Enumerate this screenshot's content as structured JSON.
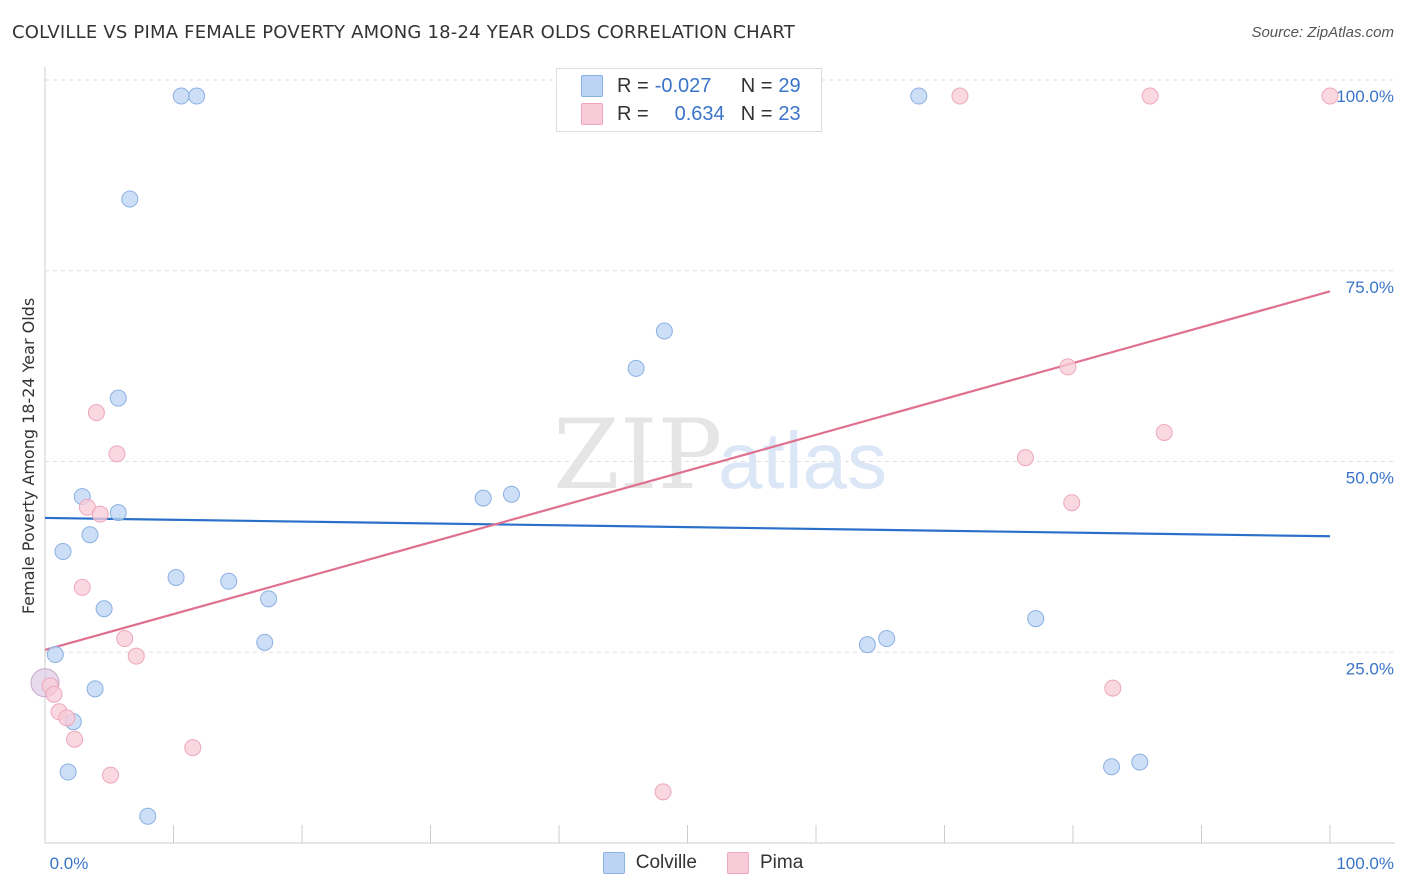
{
  "header": {
    "title": "COLVILLE VS PIMA FEMALE POVERTY AMONG 18-24 YEAR OLDS CORRELATION CHART",
    "source": "Source: ZipAtlas.com"
  },
  "legend": {
    "rows": [
      {
        "r_label": "R =",
        "r_value": "-0.027",
        "n_label": "N =",
        "n_value": "29"
      },
      {
        "r_label": "R =",
        "r_value": "0.634",
        "n_label": "N =",
        "n_value": "23"
      }
    ]
  },
  "watermark": {
    "zip": "ZIP",
    "atlas": "atlas"
  },
  "colors": {
    "colville_fill": "#bcd4f3",
    "colville_stroke": "#8ab0e4",
    "colville_line": "#2a6fc9",
    "pima_fill": "#f8cbd8",
    "pima_stroke": "#eea7bc",
    "pima_line": "#e0708f",
    "tick_label": "#3a74c9"
  },
  "chart_data": {
    "type": "scatter",
    "title": "COLVILLE VS PIMA FEMALE POVERTY AMONG 18-24 YEAR OLDS CORRELATION CHART",
    "xlabel": "",
    "ylabel": "Female Poverty Among 18-24 Year Olds",
    "xlim": [
      0,
      100
    ],
    "ylim": [
      0,
      100
    ],
    "x_tick_labels": [
      "0.0%",
      "100.0%"
    ],
    "y_ticks": [
      25,
      50,
      75,
      100
    ],
    "y_tick_labels": [
      "25.0%",
      "50.0%",
      "75.0%",
      "100.0%"
    ],
    "grid": true,
    "legend_position": "top-center",
    "series": [
      {
        "name": "Colville",
        "r": -0.027,
        "n": 29,
        "trend": {
          "x": [
            0,
            100
          ],
          "y": [
            42.6,
            40.2
          ]
        },
        "points": [
          {
            "x": 10.6,
            "y": 97.9
          },
          {
            "x": 11.8,
            "y": 97.9
          },
          {
            "x": 68.0,
            "y": 97.9
          },
          {
            "x": 6.6,
            "y": 84.4
          },
          {
            "x": 48.2,
            "y": 67.1
          },
          {
            "x": 46.0,
            "y": 62.2
          },
          {
            "x": 5.7,
            "y": 58.3
          },
          {
            "x": 2.9,
            "y": 45.4
          },
          {
            "x": 5.7,
            "y": 43.3
          },
          {
            "x": 34.1,
            "y": 45.2
          },
          {
            "x": 36.3,
            "y": 45.7
          },
          {
            "x": 3.5,
            "y": 40.4
          },
          {
            "x": 1.4,
            "y": 38.2
          },
          {
            "x": 10.2,
            "y": 34.8
          },
          {
            "x": 14.3,
            "y": 34.3
          },
          {
            "x": 17.4,
            "y": 32.0
          },
          {
            "x": 4.6,
            "y": 30.7
          },
          {
            "x": 17.1,
            "y": 26.3
          },
          {
            "x": 64.0,
            "y": 26.0
          },
          {
            "x": 65.5,
            "y": 26.8
          },
          {
            "x": 77.1,
            "y": 29.4
          },
          {
            "x": 0.8,
            "y": 24.7
          },
          {
            "x": 3.9,
            "y": 20.2
          },
          {
            "x": 2.2,
            "y": 15.9
          },
          {
            "x": 1.8,
            "y": 9.3
          },
          {
            "x": 83.0,
            "y": 10.0
          },
          {
            "x": 85.2,
            "y": 10.6
          },
          {
            "x": 8.0,
            "y": 3.5
          },
          {
            "x": 0.0,
            "y": 21.0
          }
        ]
      },
      {
        "name": "Pima",
        "r": 0.634,
        "n": 23,
        "trend": {
          "x": [
            0,
            100
          ],
          "y": [
            25.3,
            72.3
          ]
        },
        "points": [
          {
            "x": 71.2,
            "y": 97.9
          },
          {
            "x": 86.0,
            "y": 97.9
          },
          {
            "x": 100.0,
            "y": 97.9
          },
          {
            "x": 79.6,
            "y": 62.4
          },
          {
            "x": 4.0,
            "y": 56.4
          },
          {
            "x": 5.6,
            "y": 51.0
          },
          {
            "x": 76.3,
            "y": 50.5
          },
          {
            "x": 87.1,
            "y": 53.8
          },
          {
            "x": 79.9,
            "y": 44.6
          },
          {
            "x": 3.3,
            "y": 44.0
          },
          {
            "x": 4.3,
            "y": 43.1
          },
          {
            "x": 2.9,
            "y": 33.5
          },
          {
            "x": 6.2,
            "y": 26.8
          },
          {
            "x": 7.1,
            "y": 24.5
          },
          {
            "x": 0.4,
            "y": 20.6
          },
          {
            "x": 0.7,
            "y": 19.5
          },
          {
            "x": 1.1,
            "y": 17.2
          },
          {
            "x": 1.7,
            "y": 16.4
          },
          {
            "x": 2.3,
            "y": 13.6
          },
          {
            "x": 11.5,
            "y": 12.5
          },
          {
            "x": 5.1,
            "y": 8.9
          },
          {
            "x": 83.1,
            "y": 20.3
          },
          {
            "x": 48.1,
            "y": 6.7
          }
        ]
      }
    ]
  }
}
